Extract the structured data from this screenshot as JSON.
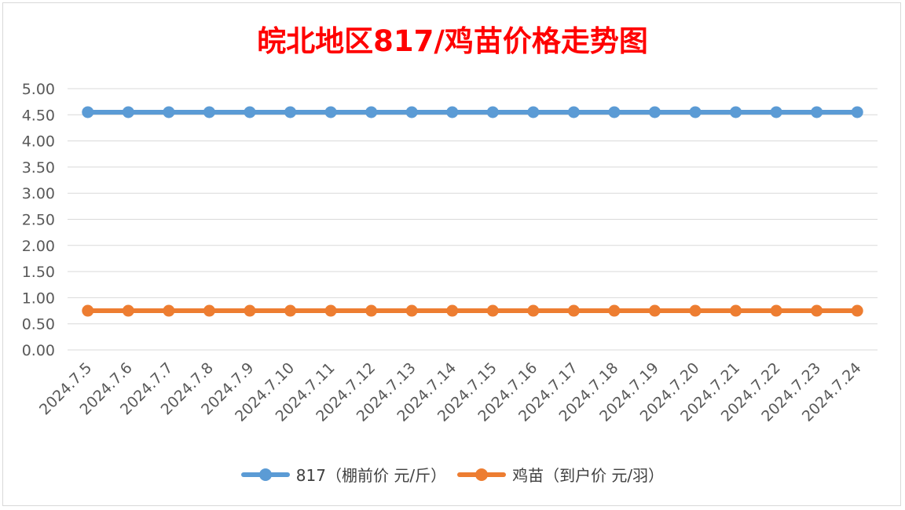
{
  "chart_data": {
    "type": "line",
    "title": "皖北地区817/鸡苗价格走势图",
    "categories": [
      "2024.7.5",
      "2024.7.6",
      "2024.7.7",
      "2024.7.8",
      "2024.7.9",
      "2024.7.10",
      "2024.7.11",
      "2024.7.12",
      "2024.7.13",
      "2024.7.14",
      "2024.7.15",
      "2024.7.16",
      "2024.7.17",
      "2024.7.18",
      "2024.7.19",
      "2024.7.20",
      "2024.7.21",
      "2024.7.22",
      "2024.7.23",
      "2024.7.24"
    ],
    "y_ticks": [
      "0.00",
      "0.50",
      "1.00",
      "1.50",
      "2.00",
      "2.50",
      "3.00",
      "3.50",
      "4.00",
      "4.50",
      "5.00"
    ],
    "ylim": [
      0,
      5
    ],
    "grid": true,
    "legend_position": "bottom",
    "series": [
      {
        "name": "817（棚前价 元/斤）",
        "color": "#5b9bd5",
        "values": [
          4.55,
          4.55,
          4.55,
          4.55,
          4.55,
          4.55,
          4.55,
          4.55,
          4.55,
          4.55,
          4.55,
          4.55,
          4.55,
          4.55,
          4.55,
          4.55,
          4.55,
          4.55,
          4.55,
          4.55
        ]
      },
      {
        "name": "鸡苗（到户价 元/羽）",
        "color": "#ed7d31",
        "values": [
          0.75,
          0.75,
          0.75,
          0.75,
          0.75,
          0.75,
          0.75,
          0.75,
          0.75,
          0.75,
          0.75,
          0.75,
          0.75,
          0.75,
          0.75,
          0.75,
          0.75,
          0.75,
          0.75,
          0.75
        ]
      }
    ]
  }
}
